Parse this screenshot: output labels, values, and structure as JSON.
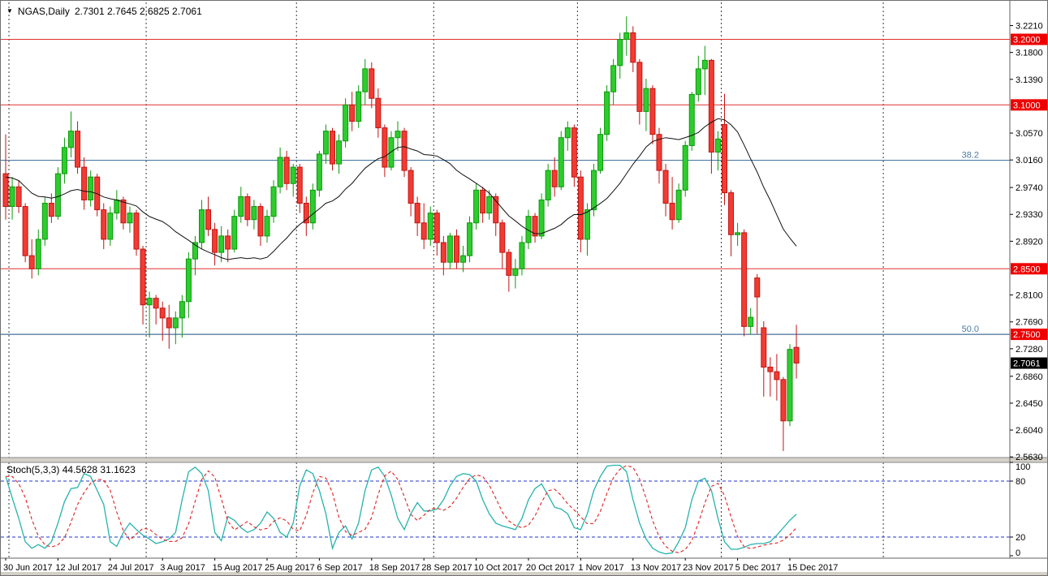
{
  "header": {
    "marker": "▼",
    "symbol_period": "NGAS,Daily",
    "ohlc_text": "2.7301 2.7645 2.6825 2.7061"
  },
  "colors": {
    "up_body": "#2ecc2e",
    "up_edge": "#0a9a0a",
    "down_body": "#f23b32",
    "down_edge": "#c01414",
    "ma_line": "#111111",
    "level_red": "#e03030",
    "fib_blue": "#4a7ba6",
    "badge_red": "#ee0000",
    "badge_black": "#000000",
    "badge_text": "#ffffff",
    "separator": "#3a3a3a",
    "stoch_k": "#26b3ad",
    "stoch_d": "#e02020",
    "stoch_level": "#2233cc",
    "axis_text": "#000000",
    "frame": "#606060",
    "strip": "#d4d0c8"
  },
  "chart_data": {
    "type": "candlestick",
    "title": "NGAS,Daily",
    "symbol": "NGAS",
    "timeframe": "Daily",
    "last_bar": {
      "open": 2.7301,
      "high": 2.7645,
      "low": 2.6825,
      "close": 2.7061
    },
    "price_axis": {
      "ticks": [
        3.221,
        3.18,
        3.139,
        3.057,
        3.016,
        2.974,
        2.933,
        2.892,
        2.81,
        2.769,
        2.728,
        2.686,
        2.645,
        2.604,
        2.563
      ],
      "level_badges": [
        3.2,
        3.1,
        2.85,
        2.75
      ],
      "price_badge": 2.7061,
      "range_top": 3.2526,
      "range_bottom": 2.5596
    },
    "x_axis": {
      "labels": [
        "30 Jun 2017",
        "12 Jul 2017",
        "24 Jul 2017",
        "3 Aug 2017",
        "15 Aug 2017",
        "25 Aug 2017",
        "6 Sep 2017",
        "18 Sep 2017",
        "28 Sep 2017",
        "10 Oct 2017",
        "20 Oct 2017",
        "1 Nov 2017",
        "13 Nov 2017",
        "23 Nov 2017",
        "5 Dec 2017",
        "15 Dec 2017"
      ],
      "label_every_n_bars": 8
    },
    "horizontal_levels_red": [
      3.2,
      3.1,
      2.85,
      2.75
    ],
    "fibonacci_levels": [
      {
        "label": "38.2",
        "price": 3.0155
      },
      {
        "label": "50.0",
        "price": 2.75
      }
    ],
    "month_separator_bars": [
      0.5,
      21.5,
      44.5,
      65.5,
      87.5,
      109.5,
      134.3
    ],
    "moving_average": {
      "type": "sma",
      "period": 20,
      "seed_closes": [
        3.01,
        3.005,
        3.0,
        2.995,
        2.99,
        2.99,
        2.985,
        2.99
      ]
    },
    "candles_ohlc": [
      [
        2.995,
        3.055,
        2.925,
        2.945
      ],
      [
        2.945,
        2.99,
        2.925,
        2.975
      ],
      [
        2.975,
        2.985,
        2.935,
        2.945
      ],
      [
        2.945,
        2.95,
        2.86,
        2.87
      ],
      [
        2.87,
        2.895,
        2.835,
        2.85
      ],
      [
        2.85,
        2.91,
        2.84,
        2.895
      ],
      [
        2.895,
        2.96,
        2.885,
        2.95
      ],
      [
        2.95,
        2.965,
        2.92,
        2.93
      ],
      [
        2.93,
        3.005,
        2.925,
        2.995
      ],
      [
        2.995,
        3.05,
        2.98,
        3.035
      ],
      [
        3.035,
        3.09,
        3.02,
        3.06
      ],
      [
        3.06,
        3.075,
        2.995,
        3.005
      ],
      [
        3.005,
        3.02,
        2.94,
        2.955
      ],
      [
        2.955,
        3.0,
        2.945,
        2.99
      ],
      [
        2.99,
        2.995,
        2.93,
        2.94
      ],
      [
        2.94,
        2.95,
        2.88,
        2.895
      ],
      [
        2.895,
        2.945,
        2.885,
        2.935
      ],
      [
        2.935,
        2.97,
        2.925,
        2.955
      ],
      [
        2.955,
        2.96,
        2.91,
        2.92
      ],
      [
        2.92,
        2.945,
        2.905,
        2.935
      ],
      [
        2.935,
        2.94,
        2.87,
        2.88
      ],
      [
        2.88,
        2.885,
        2.765,
        2.795
      ],
      [
        2.795,
        2.815,
        2.745,
        2.805
      ],
      [
        2.805,
        2.81,
        2.765,
        2.79
      ],
      [
        2.79,
        2.8,
        2.74,
        2.775
      ],
      [
        2.775,
        2.795,
        2.728,
        2.76
      ],
      [
        2.76,
        2.785,
        2.735,
        2.775
      ],
      [
        2.775,
        2.81,
        2.745,
        2.8
      ],
      [
        2.8,
        2.875,
        2.775,
        2.865
      ],
      [
        2.865,
        2.9,
        2.84,
        2.89
      ],
      [
        2.89,
        2.955,
        2.88,
        2.94
      ],
      [
        2.94,
        2.96,
        2.9,
        2.91
      ],
      [
        2.91,
        2.92,
        2.855,
        2.875
      ],
      [
        2.875,
        2.915,
        2.86,
        2.9
      ],
      [
        2.9,
        2.91,
        2.86,
        2.88
      ],
      [
        2.88,
        2.94,
        2.875,
        2.93
      ],
      [
        2.93,
        2.975,
        2.92,
        2.96
      ],
      [
        2.96,
        2.965,
        2.915,
        2.925
      ],
      [
        2.925,
        2.955,
        2.91,
        2.945
      ],
      [
        2.945,
        2.95,
        2.885,
        2.9
      ],
      [
        2.9,
        2.94,
        2.89,
        2.93
      ],
      [
        2.93,
        2.985,
        2.92,
        2.975
      ],
      [
        2.975,
        3.035,
        2.965,
        3.02
      ],
      [
        3.02,
        3.03,
        2.97,
        2.98
      ],
      [
        2.98,
        3.01,
        2.96,
        3.005
      ],
      [
        3.005,
        3.01,
        2.935,
        2.95
      ],
      [
        2.95,
        2.96,
        2.9,
        2.92
      ],
      [
        2.92,
        2.98,
        2.91,
        2.97
      ],
      [
        2.97,
        3.03,
        2.96,
        3.025
      ],
      [
        3.025,
        3.07,
        3.01,
        3.06
      ],
      [
        3.06,
        3.065,
        3.0,
        3.01
      ],
      [
        3.01,
        3.055,
        2.995,
        3.045
      ],
      [
        3.045,
        3.11,
        3.035,
        3.1
      ],
      [
        3.1,
        3.12,
        3.06,
        3.075
      ],
      [
        3.075,
        3.13,
        3.065,
        3.12
      ],
      [
        3.12,
        3.17,
        3.1,
        3.155
      ],
      [
        3.155,
        3.165,
        3.095,
        3.11
      ],
      [
        3.11,
        3.125,
        3.05,
        3.065
      ],
      [
        3.065,
        3.07,
        2.99,
        3.005
      ],
      [
        3.005,
        3.06,
        3.0,
        3.05
      ],
      [
        3.05,
        3.075,
        3.03,
        3.06
      ],
      [
        3.06,
        3.065,
        2.99,
        3.0
      ],
      [
        3.0,
        3.005,
        2.93,
        2.95
      ],
      [
        2.95,
        2.96,
        2.9,
        2.92
      ],
      [
        2.92,
        2.95,
        2.88,
        2.895
      ],
      [
        2.895,
        2.945,
        2.885,
        2.935
      ],
      [
        2.935,
        2.94,
        2.87,
        2.89
      ],
      [
        2.89,
        2.9,
        2.84,
        2.86
      ],
      [
        2.86,
        2.905,
        2.85,
        2.9
      ],
      [
        2.9,
        2.91,
        2.85,
        2.86
      ],
      [
        2.86,
        2.885,
        2.845,
        2.87
      ],
      [
        2.87,
        2.93,
        2.86,
        2.92
      ],
      [
        2.92,
        2.98,
        2.91,
        2.97
      ],
      [
        2.97,
        2.975,
        2.92,
        2.935
      ],
      [
        2.935,
        2.97,
        2.925,
        2.96
      ],
      [
        2.96,
        2.965,
        2.9,
        2.92
      ],
      [
        2.92,
        2.925,
        2.85,
        2.875
      ],
      [
        2.875,
        2.88,
        2.815,
        2.84
      ],
      [
        2.84,
        2.865,
        2.82,
        2.85
      ],
      [
        2.85,
        2.9,
        2.84,
        2.89
      ],
      [
        2.89,
        2.94,
        2.88,
        2.93
      ],
      [
        2.93,
        2.935,
        2.89,
        2.9
      ],
      [
        2.9,
        2.965,
        2.895,
        2.955
      ],
      [
        2.955,
        3.01,
        2.945,
        3.0
      ],
      [
        3.0,
        3.02,
        2.96,
        2.975
      ],
      [
        2.975,
        3.06,
        2.97,
        3.05
      ],
      [
        3.05,
        3.075,
        3.03,
        3.065
      ],
      [
        3.065,
        3.07,
        2.975,
        2.99
      ],
      [
        2.99,
        3.0,
        2.875,
        2.895
      ],
      [
        2.895,
        2.95,
        2.87,
        2.94
      ],
      [
        2.94,
        3.01,
        2.93,
        3.0
      ],
      [
        3.0,
        3.065,
        2.995,
        3.055
      ],
      [
        3.055,
        3.13,
        3.045,
        3.12
      ],
      [
        3.12,
        3.17,
        3.1,
        3.16
      ],
      [
        3.16,
        3.21,
        3.14,
        3.2
      ],
      [
        3.2,
        3.235,
        3.175,
        3.21
      ],
      [
        3.21,
        3.22,
        3.15,
        3.165
      ],
      [
        3.165,
        3.17,
        3.07,
        3.09
      ],
      [
        3.09,
        3.14,
        3.06,
        3.125
      ],
      [
        3.125,
        3.13,
        3.04,
        3.055
      ],
      [
        3.055,
        3.065,
        2.98,
        3.0
      ],
      [
        3.0,
        3.01,
        2.93,
        2.95
      ],
      [
        2.95,
        2.99,
        2.91,
        2.925
      ],
      [
        2.925,
        2.98,
        2.92,
        2.97
      ],
      [
        2.97,
        3.045,
        2.96,
        3.038
      ],
      [
        3.038,
        3.12,
        3.03,
        3.116
      ],
      [
        3.116,
        3.175,
        3.105,
        3.155
      ],
      [
        3.155,
        3.19,
        3.115,
        3.168
      ],
      [
        3.168,
        3.17,
        2.995,
        3.028
      ],
      [
        3.028,
        3.06,
        3.0,
        3.048
      ],
      [
        3.07,
        3.117,
        2.947,
        2.966
      ],
      [
        2.966,
        2.97,
        2.869,
        2.902
      ],
      [
        2.902,
        2.92,
        2.885,
        2.905
      ],
      [
        2.905,
        2.91,
        2.747,
        2.762
      ],
      [
        2.762,
        2.79,
        2.75,
        2.776
      ],
      [
        2.836,
        2.842,
        2.751,
        2.807
      ],
      [
        2.76,
        2.77,
        2.655,
        2.7
      ],
      [
        2.7,
        2.715,
        2.655,
        2.693
      ],
      [
        2.693,
        2.72,
        2.649,
        2.681
      ],
      [
        2.681,
        2.685,
        2.572,
        2.618
      ],
      [
        2.618,
        2.735,
        2.61,
        2.727
      ],
      [
        2.7301,
        2.7645,
        2.6825,
        2.7061
      ]
    ],
    "stochastic": {
      "label": "Stoch(5,3,3)",
      "values_text": "44.5628 31.1623",
      "k_last": 44.5628,
      "d_last": 31.1623,
      "levels": [
        80,
        20
      ],
      "axis_ticks": [
        100,
        80,
        20,
        0
      ],
      "k_values": [
        85,
        62,
        40,
        15,
        8,
        12,
        8,
        15,
        35,
        58,
        72,
        73,
        88,
        85,
        70,
        55,
        15,
        10,
        25,
        35,
        28,
        22,
        18,
        13,
        15,
        18,
        25,
        60,
        90,
        95,
        88,
        70,
        25,
        16,
        42,
        38,
        30,
        25,
        28,
        35,
        47,
        40,
        25,
        20,
        35,
        75,
        92,
        88,
        70,
        45,
        8,
        25,
        32,
        18,
        35,
        70,
        92,
        95,
        85,
        65,
        40,
        28,
        45,
        57,
        48,
        48,
        50,
        60,
        75,
        85,
        88,
        87,
        80,
        60,
        45,
        35,
        32,
        30,
        28,
        40,
        60,
        72,
        77,
        65,
        52,
        50,
        45,
        30,
        28,
        45,
        70,
        85,
        96,
        97,
        97,
        90,
        60,
        35,
        18,
        8,
        4,
        2,
        3,
        15,
        30,
        60,
        80,
        83,
        70,
        40,
        15,
        7,
        7,
        9,
        12,
        13,
        13,
        15,
        22,
        30,
        38,
        44.56
      ]
    }
  }
}
